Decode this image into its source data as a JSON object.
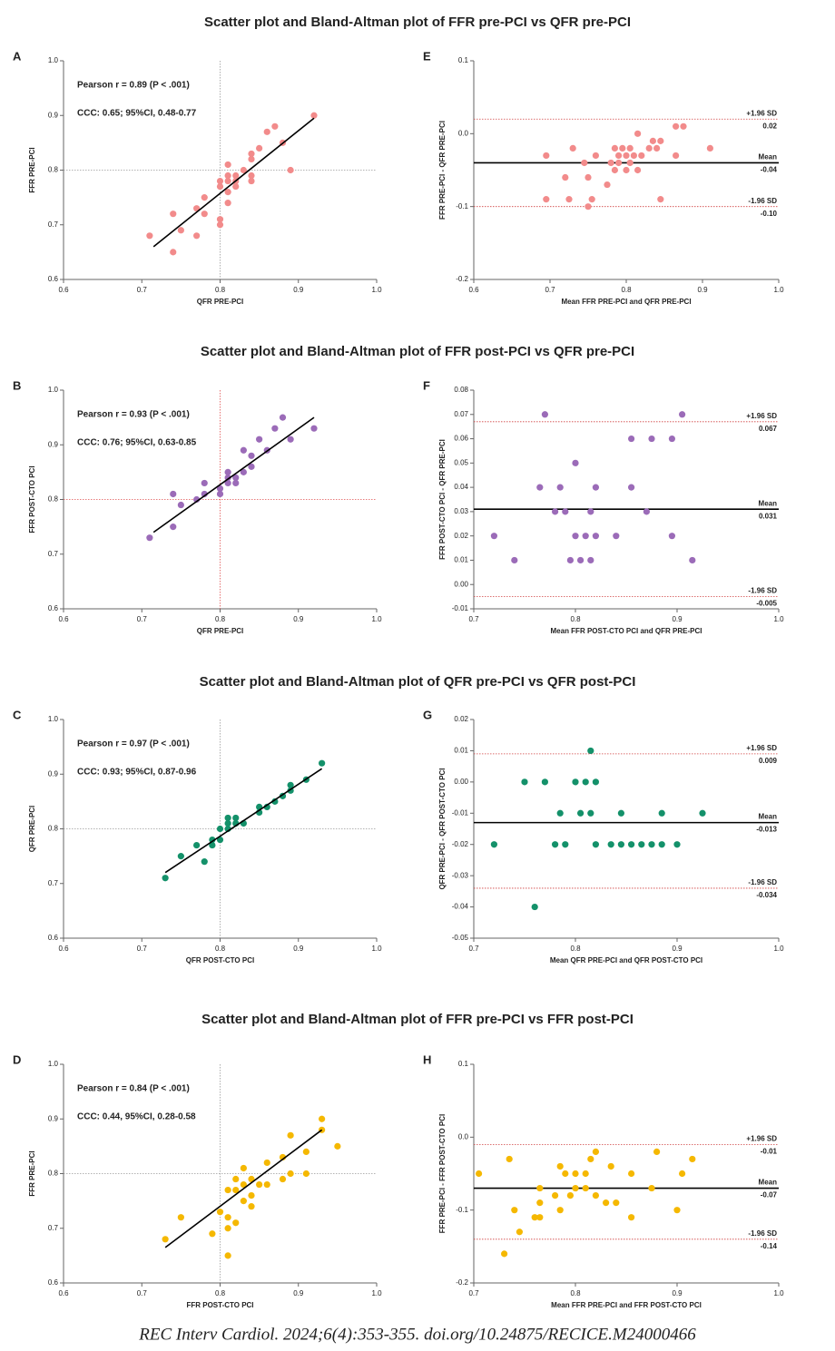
{
  "chart_data": [
    {
      "panel": "A",
      "type": "scatter",
      "title": "Scatter plot and Bland-Altman plot of FFR pre-PCI vs QFR pre-PCI",
      "xlabel": "QFR PRE-PCI",
      "ylabel": "FFR PRE-PCI",
      "xlim": [
        0.6,
        1.0
      ],
      "ylim": [
        0.6,
        1.0
      ],
      "xticks": [
        0.6,
        0.7,
        0.8,
        0.9,
        {
          "value": 1.0,
          "label": "1.0"
        }
      ],
      "yticks": [
        0.6,
        0.7,
        0.8,
        0.9,
        {
          "value": 1.0,
          "label": "1.0"
        }
      ],
      "color": "#f28b8b",
      "x": [
        0.71,
        0.74,
        0.74,
        0.75,
        0.77,
        0.77,
        0.78,
        0.78,
        0.8,
        0.8,
        0.8,
        0.8,
        0.81,
        0.81,
        0.81,
        0.81,
        0.81,
        0.82,
        0.82,
        0.82,
        0.83,
        0.84,
        0.84,
        0.84,
        0.84,
        0.85,
        0.86,
        0.87,
        0.88,
        0.89,
        0.92
      ],
      "y": [
        0.68,
        0.65,
        0.72,
        0.69,
        0.68,
        0.73,
        0.72,
        0.75,
        0.7,
        0.71,
        0.77,
        0.78,
        0.74,
        0.76,
        0.78,
        0.79,
        0.81,
        0.77,
        0.78,
        0.79,
        0.8,
        0.78,
        0.79,
        0.82,
        0.83,
        0.84,
        0.87,
        0.88,
        0.85,
        0.8,
        0.9
      ],
      "reference_lines": {
        "x": 0.8,
        "y": 0.8,
        "color": "#9a9a9a"
      },
      "fit_line": {
        "x": [
          0.715,
          0.92
        ],
        "y": [
          0.66,
          0.895
        ]
      },
      "annotations": [
        "Pearson r = 0.89 (P < .001)",
        "CCC: 0.65; 95%CI, 0.48-0.77"
      ]
    },
    {
      "panel": "E",
      "type": "bland_altman",
      "xlabel": "Mean FFR PRE-PCI and QFR PRE-PCI",
      "ylabel": "FFR PRE-PCI - QFR PRE-PCI",
      "xlim": [
        0.6,
        1.0
      ],
      "ylim": [
        -0.2,
        0.1
      ],
      "xticks": [
        0.6,
        0.7,
        0.8,
        0.9,
        {
          "value": 1.0,
          "label": "1.0"
        }
      ],
      "yticks": [
        -0.2,
        -0.1,
        {
          "value": 0,
          "label": "0.0"
        },
        0.1
      ],
      "color": "#f28b8b",
      "x": [
        0.695,
        0.695,
        0.72,
        0.725,
        0.73,
        0.745,
        0.75,
        0.75,
        0.755,
        0.76,
        0.775,
        0.78,
        0.785,
        0.785,
        0.79,
        0.79,
        0.795,
        0.8,
        0.8,
        0.805,
        0.805,
        0.81,
        0.815,
        0.815,
        0.82,
        0.83,
        0.835,
        0.84,
        0.845,
        0.845,
        0.865,
        0.865,
        0.875,
        0.91
      ],
      "y": [
        -0.03,
        -0.09,
        -0.06,
        -0.09,
        -0.02,
        -0.04,
        -0.06,
        -0.1,
        -0.09,
        -0.03,
        -0.07,
        -0.04,
        -0.02,
        -0.05,
        -0.03,
        -0.04,
        -0.02,
        -0.03,
        -0.05,
        -0.02,
        -0.04,
        -0.03,
        0.0,
        -0.05,
        -0.03,
        -0.02,
        -0.01,
        -0.02,
        -0.01,
        -0.09,
        0.01,
        -0.03,
        0.01,
        -0.02
      ],
      "lines": [
        {
          "name": "+1.96 SD",
          "value": 0.02,
          "value_label": "0.02",
          "style": "dotted"
        },
        {
          "name": "Mean",
          "value": -0.04,
          "value_label": "-0.04",
          "style": "solid"
        },
        {
          "name": "-1.96 SD",
          "value": -0.1,
          "value_label": "-0.10",
          "style": "dotted"
        }
      ]
    },
    {
      "panel": "B",
      "type": "scatter",
      "title": "Scatter plot and Bland-Altman plot of FFR post-PCI vs QFR pre-PCI",
      "xlabel": "QFR PRE-PCI",
      "ylabel": "FFR POST-CTO PCI",
      "xlim": [
        0.6,
        1.0
      ],
      "ylim": [
        0.6,
        1.0
      ],
      "xticks": [
        0.6,
        0.7,
        0.8,
        0.9,
        {
          "value": 1.0,
          "label": "1.0"
        }
      ],
      "yticks": [
        0.6,
        0.7,
        0.8,
        0.9,
        {
          "value": 1.0,
          "label": "1.0"
        }
      ],
      "color": "#9b6bb8",
      "x": [
        0.71,
        0.74,
        0.74,
        0.75,
        0.77,
        0.78,
        0.78,
        0.8,
        0.8,
        0.81,
        0.81,
        0.81,
        0.82,
        0.82,
        0.83,
        0.83,
        0.84,
        0.84,
        0.85,
        0.86,
        0.87,
        0.88,
        0.89,
        0.92
      ],
      "y": [
        0.73,
        0.75,
        0.81,
        0.79,
        0.8,
        0.81,
        0.83,
        0.81,
        0.82,
        0.83,
        0.84,
        0.85,
        0.83,
        0.84,
        0.85,
        0.89,
        0.86,
        0.88,
        0.91,
        0.89,
        0.93,
        0.95,
        0.91,
        0.93
      ],
      "reference_lines": {
        "x": 0.8,
        "y": 0.8,
        "color": "#e05050"
      },
      "fit_line": {
        "x": [
          0.715,
          0.92
        ],
        "y": [
          0.74,
          0.95
        ]
      },
      "annotations": [
        "Pearson r = 0.93 (P < .001)",
        "CCC: 0.76; 95%CI, 0.63-0.85"
      ]
    },
    {
      "panel": "F",
      "type": "bland_altman",
      "xlabel": "Mean FFR POST-CTO PCI and QFR PRE-PCI",
      "ylabel": "FFR POST-CTO PCI - QFR PRE-PCI",
      "xlim": [
        0.7,
        1.0
      ],
      "ylim": [
        -0.01,
        0.08
      ],
      "xticks": [
        0.7,
        0.8,
        0.9,
        {
          "value": 1.0,
          "label": "1.0"
        }
      ],
      "yticks": [
        -0.01,
        {
          "value": 0,
          "label": "0.00"
        },
        0.01,
        0.02,
        0.03,
        0.04,
        0.05,
        0.06,
        0.07,
        0.08
      ],
      "color": "#9b6bb8",
      "x": [
        0.72,
        0.74,
        0.765,
        0.77,
        0.78,
        0.785,
        0.79,
        0.795,
        0.8,
        0.8,
        0.805,
        0.81,
        0.815,
        0.815,
        0.82,
        0.82,
        0.84,
        0.855,
        0.855,
        0.87,
        0.875,
        0.895,
        0.895,
        0.905,
        0.915
      ],
      "y": [
        0.02,
        0.01,
        0.04,
        0.07,
        0.03,
        0.04,
        0.03,
        0.01,
        0.05,
        0.02,
        0.01,
        0.02,
        0.01,
        0.03,
        0.02,
        0.04,
        0.02,
        0.06,
        0.04,
        0.03,
        0.06,
        0.06,
        0.02,
        0.07,
        0.01
      ],
      "lines": [
        {
          "name": "+1.96 SD",
          "value": 0.067,
          "value_label": "0.067",
          "style": "dotted"
        },
        {
          "name": "Mean",
          "value": 0.031,
          "value_label": "0.031",
          "style": "solid"
        },
        {
          "name": "-1.96 SD",
          "value": -0.005,
          "value_label": "-0.005",
          "style": "dotted"
        }
      ]
    },
    {
      "panel": "C",
      "type": "scatter",
      "title": "Scatter plot and Bland-Altman plot of QFR pre-PCI vs QFR post-PCI",
      "xlabel": "QFR POST-CTO PCI",
      "ylabel": "QFR PRE-PCI",
      "xlim": [
        0.6,
        1.0
      ],
      "ylim": [
        0.6,
        1.0
      ],
      "xticks": [
        0.6,
        0.7,
        0.8,
        0.9,
        {
          "value": 1.0,
          "label": "1.0"
        }
      ],
      "yticks": [
        0.6,
        0.7,
        0.8,
        0.9,
        {
          "value": 1.0,
          "label": "1.0"
        }
      ],
      "color": "#14916a",
      "x": [
        0.73,
        0.75,
        0.77,
        0.78,
        0.79,
        0.79,
        0.8,
        0.8,
        0.81,
        0.81,
        0.81,
        0.82,
        0.82,
        0.83,
        0.85,
        0.85,
        0.86,
        0.87,
        0.88,
        0.89,
        0.89,
        0.91,
        0.93
      ],
      "y": [
        0.71,
        0.75,
        0.77,
        0.74,
        0.77,
        0.78,
        0.78,
        0.8,
        0.8,
        0.81,
        0.82,
        0.81,
        0.82,
        0.81,
        0.83,
        0.84,
        0.84,
        0.85,
        0.86,
        0.87,
        0.88,
        0.89,
        0.92
      ],
      "reference_lines": {
        "x": 0.8,
        "y": 0.8,
        "color": "#9a9a9a"
      },
      "fit_line": {
        "x": [
          0.73,
          0.93
        ],
        "y": [
          0.72,
          0.91
        ]
      },
      "annotations": [
        "Pearson r = 0.97 (P < .001)",
        "CCC: 0.93; 95%CI, 0.87-0.96"
      ]
    },
    {
      "panel": "G",
      "type": "bland_altman",
      "xlabel": "Mean QFR PRE-PCI and QFR POST-CTO PCI",
      "ylabel": "QFR PRE-PCI - QFR POST-CTO PCI",
      "xlim": [
        0.7,
        1.0
      ],
      "ylim": [
        -0.05,
        0.02
      ],
      "xticks": [
        0.7,
        0.8,
        0.9,
        {
          "value": 1.0,
          "label": "1.0"
        }
      ],
      "yticks": [
        -0.05,
        -0.04,
        -0.03,
        -0.02,
        -0.01,
        {
          "value": 0,
          "label": "0.00"
        },
        0.01,
        0.02
      ],
      "color": "#14916a",
      "x": [
        0.72,
        0.75,
        0.76,
        0.77,
        0.78,
        0.785,
        0.79,
        0.8,
        0.805,
        0.81,
        0.815,
        0.815,
        0.82,
        0.82,
        0.835,
        0.845,
        0.845,
        0.855,
        0.865,
        0.875,
        0.885,
        0.885,
        0.9,
        0.925
      ],
      "y": [
        -0.02,
        0.0,
        -0.04,
        0.0,
        -0.02,
        -0.01,
        -0.02,
        0.0,
        -0.01,
        0.0,
        0.01,
        -0.01,
        0.0,
        -0.02,
        -0.02,
        -0.01,
        -0.02,
        -0.02,
        -0.02,
        -0.02,
        -0.01,
        -0.02,
        -0.02,
        -0.01
      ],
      "lines": [
        {
          "name": "+1.96 SD",
          "value": 0.009,
          "value_label": "0.009",
          "style": "dotted"
        },
        {
          "name": "Mean",
          "value": -0.013,
          "value_label": "-0.013",
          "style": "solid"
        },
        {
          "name": "-1.96 SD",
          "value": -0.034,
          "value_label": "-0.034",
          "style": "dotted"
        }
      ]
    },
    {
      "panel": "D",
      "type": "scatter",
      "title": "Scatter plot and Bland-Altman plot of FFR pre-PCI vs FFR post-PCI",
      "xlabel": "FFR  POST-CTO PCI",
      "ylabel": "FFR PRE-PCI",
      "xlim": [
        0.6,
        1.0
      ],
      "ylim": [
        0.6,
        1.0
      ],
      "xticks": [
        0.6,
        0.7,
        0.8,
        0.9,
        {
          "value": 1.0,
          "label": "1.0"
        }
      ],
      "yticks": [
        0.6,
        0.7,
        0.8,
        0.9,
        {
          "value": 1.0,
          "label": "1.0"
        }
      ],
      "color": "#f5b800",
      "x": [
        0.73,
        0.75,
        0.79,
        0.8,
        0.81,
        0.81,
        0.81,
        0.81,
        0.82,
        0.82,
        0.82,
        0.83,
        0.83,
        0.83,
        0.84,
        0.84,
        0.84,
        0.85,
        0.86,
        0.86,
        0.88,
        0.88,
        0.89,
        0.89,
        0.91,
        0.91,
        0.93,
        0.93,
        0.95
      ],
      "y": [
        0.68,
        0.72,
        0.69,
        0.73,
        0.65,
        0.7,
        0.72,
        0.77,
        0.71,
        0.77,
        0.79,
        0.75,
        0.78,
        0.81,
        0.74,
        0.76,
        0.79,
        0.78,
        0.78,
        0.82,
        0.79,
        0.83,
        0.8,
        0.87,
        0.8,
        0.84,
        0.88,
        0.9,
        0.85
      ],
      "reference_lines": {
        "x": 0.8,
        "y": 0.8,
        "color": "#9a9a9a"
      },
      "fit_line": {
        "x": [
          0.73,
          0.93
        ],
        "y": [
          0.665,
          0.88
        ]
      },
      "annotations": [
        "Pearson r = 0.84 (P < .001)",
        "CCC: 0.44, 95%CI, 0.28-0.58"
      ]
    },
    {
      "panel": "H",
      "type": "bland_altman",
      "xlabel": "Mean FFR PRE-PCI and FFR POST-CTO PCI",
      "ylabel": "FFR PRE-PCI - FFR POST-CTO PCI",
      "xlim": [
        0.7,
        1.0
      ],
      "ylim": [
        -0.2,
        0.1
      ],
      "xticks": [
        0.7,
        0.8,
        0.9,
        {
          "value": 1.0,
          "label": "1.0"
        }
      ],
      "yticks": [
        -0.2,
        -0.1,
        {
          "value": 0,
          "label": "0.0"
        },
        0.1
      ],
      "color": "#f5b800",
      "x": [
        0.705,
        0.73,
        0.735,
        0.74,
        0.745,
        0.76,
        0.765,
        0.765,
        0.765,
        0.78,
        0.785,
        0.785,
        0.79,
        0.795,
        0.8,
        0.8,
        0.81,
        0.81,
        0.815,
        0.82,
        0.82,
        0.83,
        0.835,
        0.84,
        0.855,
        0.855,
        0.875,
        0.88,
        0.9,
        0.905,
        0.915
      ],
      "y": [
        -0.05,
        -0.16,
        -0.03,
        -0.1,
        -0.13,
        -0.11,
        -0.07,
        -0.09,
        -0.11,
        -0.08,
        -0.04,
        -0.1,
        -0.05,
        -0.08,
        -0.05,
        -0.07,
        -0.05,
        -0.07,
        -0.03,
        -0.02,
        -0.08,
        -0.09,
        -0.04,
        -0.09,
        -0.05,
        -0.11,
        -0.07,
        -0.02,
        -0.1,
        -0.05,
        -0.03
      ],
      "lines": [
        {
          "name": "+1.96 SD",
          "value": -0.01,
          "value_label": "-0.01",
          "style": "dotted"
        },
        {
          "name": "Mean",
          "value": -0.07,
          "value_label": "-0.07",
          "style": "solid"
        },
        {
          "name": "-1.96 SD",
          "value": -0.14,
          "value_label": "-0.14",
          "style": "dotted"
        }
      ]
    }
  ],
  "caption": "REC Interv Cardiol. 2024;6(4):353-355. doi.org/10.24875/RECICE.M24000466"
}
